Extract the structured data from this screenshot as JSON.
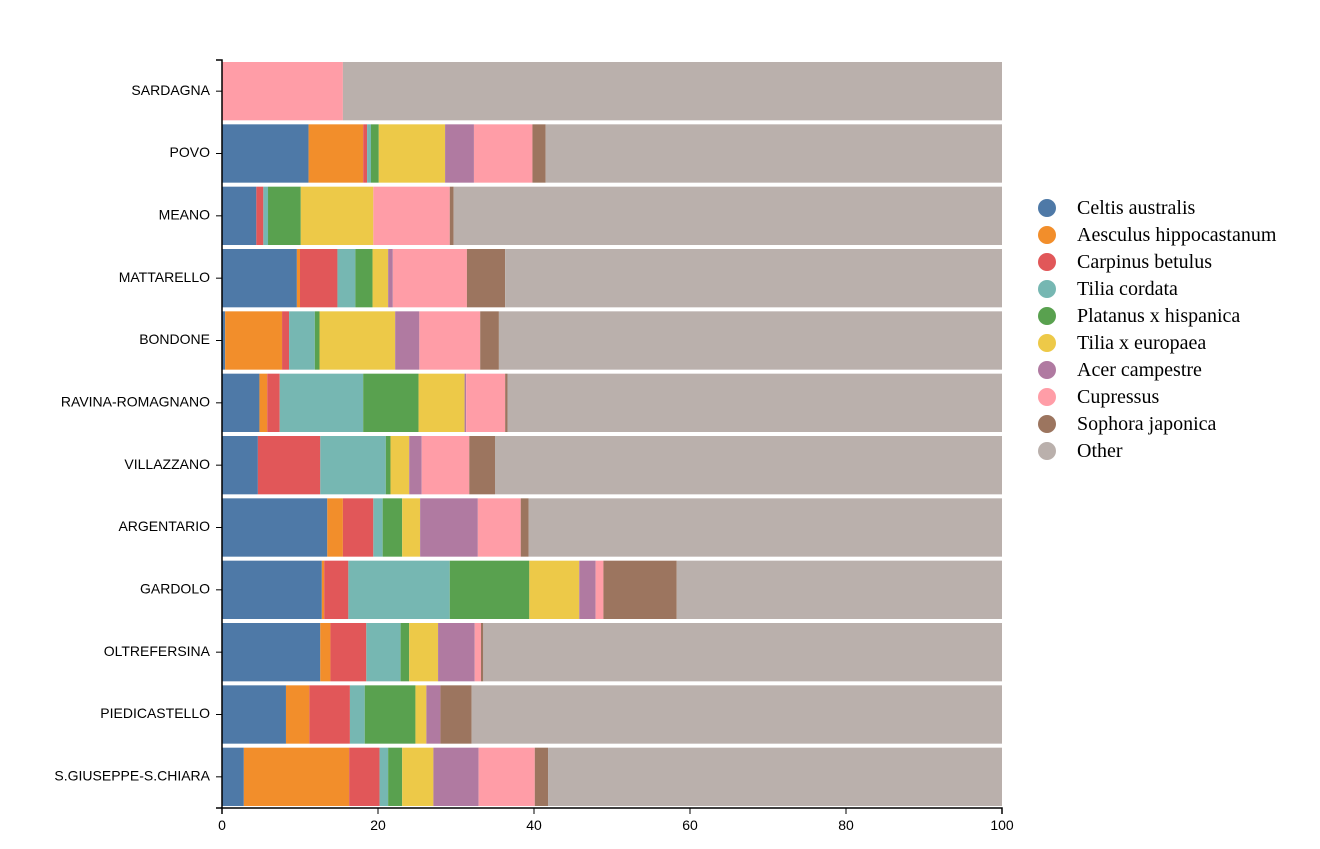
{
  "chart_data": {
    "type": "bar",
    "orientation": "horizontal",
    "stacked": true,
    "title": "",
    "xlabel": "",
    "ylabel": "",
    "xlim": [
      0,
      100
    ],
    "x_ticks": [
      0,
      20,
      40,
      60,
      80,
      100
    ],
    "grid": false,
    "legend_position": "right",
    "categories": [
      "SARDAGNA",
      "POVO",
      "MEANO",
      "MATTARELLO",
      "BONDONE",
      "RAVINA-ROMAGNANO",
      "VILLAZZANO",
      "ARGENTARIO",
      "GARDOLO",
      "OLTREFERSINA",
      "PIEDICASTELLO",
      "S.GIUSEPPE-S.CHIARA"
    ],
    "series": [
      {
        "name": "Celtis australis",
        "color": "#4e79a7",
        "values": [
          0,
          11.1,
          4.4,
          9.6,
          0.4,
          4.8,
          4.6,
          13.5,
          12.8,
          12.6,
          8.2,
          2.8
        ]
      },
      {
        "name": "Aesculus hippocastanum",
        "color": "#f28e2b",
        "values": [
          0,
          7.0,
          0,
          0.4,
          7.3,
          1.0,
          0,
          2.0,
          0.3,
          1.3,
          3.0,
          13.5
        ]
      },
      {
        "name": "Carpinus betulus",
        "color": "#e15759",
        "values": [
          0,
          0.5,
          0.9,
          4.8,
          0.9,
          1.6,
          8.0,
          3.9,
          3.1,
          4.6,
          5.2,
          3.9
        ]
      },
      {
        "name": "Tilia cordata",
        "color": "#76b7b2",
        "values": [
          0,
          0.5,
          0.6,
          2.3,
          3.3,
          10.7,
          8.4,
          1.2,
          13.0,
          4.4,
          1.9,
          1.1
        ]
      },
      {
        "name": "Platanus x hispanica",
        "color": "#59a14f",
        "values": [
          0,
          1.0,
          4.2,
          2.2,
          0.6,
          7.1,
          0.6,
          2.5,
          10.2,
          1.1,
          6.5,
          1.8
        ]
      },
      {
        "name": "Tilia x europaea",
        "color": "#edc948",
        "values": [
          0,
          8.5,
          9.3,
          2.0,
          9.7,
          5.9,
          2.4,
          2.3,
          6.4,
          3.7,
          1.4,
          4.0
        ]
      },
      {
        "name": "Acer campestre",
        "color": "#b07aa1",
        "values": [
          0,
          3.7,
          0,
          0.6,
          3.1,
          0.2,
          1.6,
          7.4,
          2.1,
          4.7,
          1.8,
          5.8
        ]
      },
      {
        "name": "Cupressus",
        "color": "#ff9da7",
        "values": [
          15.5,
          7.5,
          9.8,
          9.5,
          7.8,
          5.0,
          6.1,
          5.5,
          1.0,
          0.8,
          0,
          7.2
        ]
      },
      {
        "name": "Sophora japonica",
        "color": "#9c755f",
        "values": [
          0,
          1.7,
          0.5,
          4.9,
          2.4,
          0.3,
          3.3,
          1.0,
          9.4,
          0.3,
          4.0,
          1.7
        ]
      },
      {
        "name": "Other",
        "color": "#bab0ac",
        "values": [
          84.5,
          58.5,
          70.3,
          63.7,
          64.5,
          63.4,
          65.0,
          60.7,
          41.7,
          66.5,
          68.0,
          58.2
        ]
      }
    ]
  }
}
